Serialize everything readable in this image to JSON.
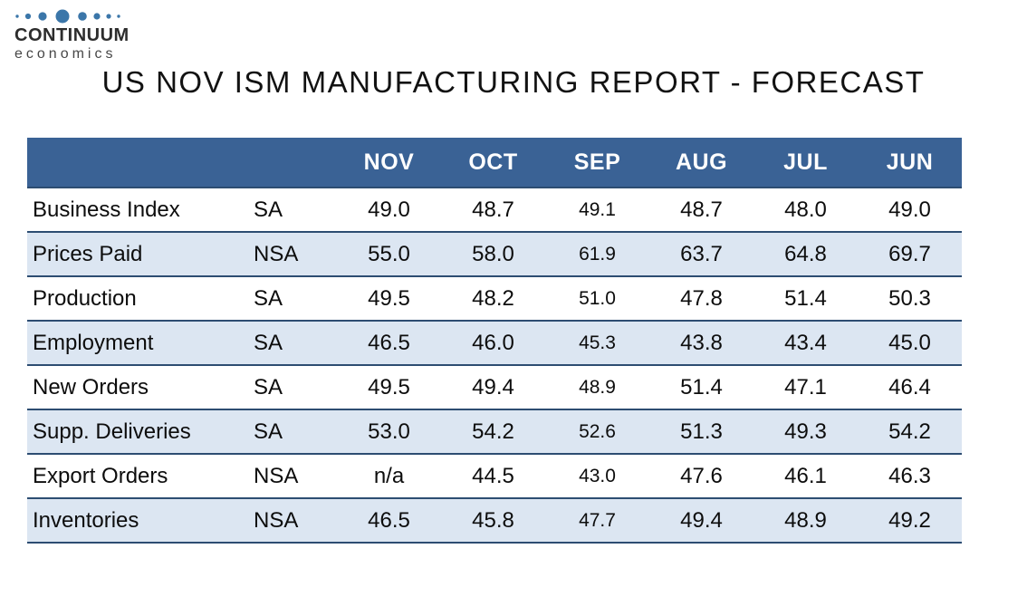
{
  "logo": {
    "brand": "CONTINUUM",
    "subbrand": "economics"
  },
  "title": "US NOV ISM MANUFACTURING REPORT - FORECAST",
  "chart_data": {
    "type": "table",
    "title": "US NOV ISM MANUFACTURING REPORT - FORECAST",
    "columns": [
      "",
      "",
      "NOV",
      "OCT",
      "SEP",
      "AUG",
      "JUL",
      "JUN"
    ],
    "rows": [
      {
        "label": "Business Index",
        "adjustment": "SA",
        "values": [
          "49.0",
          "48.7",
          "49.1",
          "48.7",
          "48.0",
          "49.0"
        ]
      },
      {
        "label": "Prices Paid",
        "adjustment": "NSA",
        "values": [
          "55.0",
          "58.0",
          "61.9",
          "63.7",
          "64.8",
          "69.7"
        ]
      },
      {
        "label": "Production",
        "adjustment": "SA",
        "values": [
          "49.5",
          "48.2",
          "51.0",
          "47.8",
          "51.4",
          "50.3"
        ]
      },
      {
        "label": "Employment",
        "adjustment": "SA",
        "values": [
          "46.5",
          "46.0",
          "45.3",
          "43.8",
          "43.4",
          "45.0"
        ]
      },
      {
        "label": "New Orders",
        "adjustment": "SA",
        "values": [
          "49.5",
          "49.4",
          "48.9",
          "51.4",
          "47.1",
          "46.4"
        ]
      },
      {
        "label": "Supp. Deliveries",
        "adjustment": "SA",
        "values": [
          "53.0",
          "54.2",
          "52.6",
          "51.3",
          "49.3",
          "54.2"
        ]
      },
      {
        "label": "Export Orders",
        "adjustment": "NSA",
        "values": [
          "n/a",
          "44.5",
          "43.0",
          "47.6",
          "46.1",
          "46.3"
        ]
      },
      {
        "label": "Inventories",
        "adjustment": "NSA",
        "values": [
          "46.5",
          "45.8",
          "47.7",
          "49.4",
          "48.9",
          "49.2"
        ]
      }
    ]
  },
  "colors": {
    "header_bg": "#3a6295",
    "row_alt_bg": "#dce6f2",
    "row_divider": "#2d4d72",
    "logo_dot": "#3b76a9"
  }
}
